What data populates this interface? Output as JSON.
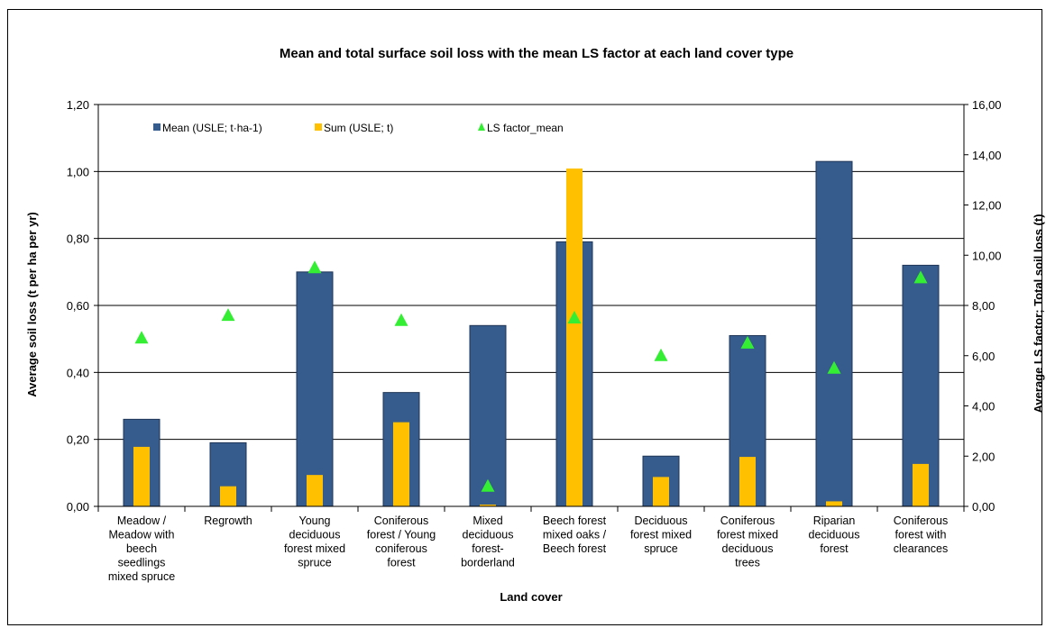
{
  "chart_data": {
    "type": "bar",
    "title": "Mean and total surface soil loss with the mean LS factor at each land cover type",
    "xlabel": "Land cover",
    "ylabel_left": "Average soil loss (t per ha per yr)",
    "ylabel_right": "Average LS factor; Total soil loss (t)",
    "ylim_left": [
      0,
      1.2
    ],
    "ylim_right": [
      0,
      16
    ],
    "yticks_left": [
      "0,00",
      "0,20",
      "0,40",
      "0,60",
      "0,80",
      "1,00",
      "1,20"
    ],
    "yticks_right": [
      "0,00",
      "2,00",
      "4,00",
      "6,00",
      "8,00",
      "10,00",
      "12,00",
      "14,00",
      "16,00"
    ],
    "grid": true,
    "legend_position": "top",
    "categories": [
      [
        "Meadow /",
        "Meadow with",
        "beech",
        "seedlings",
        "mixed spruce"
      ],
      [
        "Regrowth"
      ],
      [
        "Young",
        "deciduous",
        "forest mixed",
        "spruce"
      ],
      [
        "Coniferous",
        "forest / Young",
        "coniferous",
        "forest"
      ],
      [
        "Mixed",
        "deciduous",
        "forest-",
        "borderland"
      ],
      [
        "Beech forest",
        "mixed oaks /",
        "Beech forest"
      ],
      [
        "Deciduous",
        "forest mixed",
        "spruce"
      ],
      [
        "Coniferous",
        "forest mixed",
        "deciduous",
        "trees"
      ],
      [
        "Riparian",
        "deciduous",
        "forest"
      ],
      [
        "Coniferous",
        "forest with",
        "clearances"
      ]
    ],
    "series": [
      {
        "name": "Mean (USLE; t·ha-1)",
        "axis": "left",
        "kind": "bar",
        "color": "#365c8d",
        "values": [
          0.26,
          0.19,
          0.7,
          0.34,
          0.54,
          0.79,
          0.15,
          0.51,
          1.03,
          0.72
        ]
      },
      {
        "name": "Sum (USLE; t)",
        "axis": "right",
        "kind": "bar",
        "color": "#ffc000",
        "values": [
          2.37,
          0.8,
          1.25,
          3.35,
          0.07,
          13.45,
          1.17,
          1.97,
          0.2,
          1.69
        ]
      },
      {
        "name": "LS factor_mean",
        "axis": "right",
        "kind": "marker",
        "color": "#33ee33",
        "values": [
          6.7,
          7.6,
          9.5,
          7.4,
          0.8,
          7.5,
          6.0,
          6.5,
          5.5,
          9.1
        ]
      }
    ]
  }
}
